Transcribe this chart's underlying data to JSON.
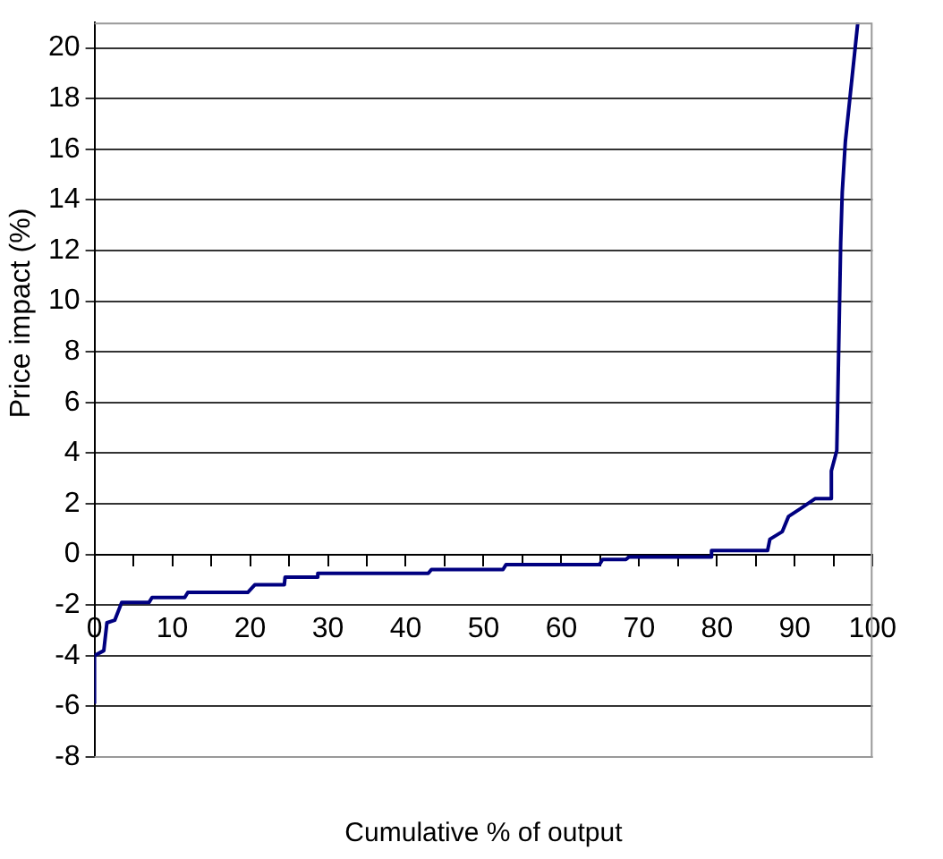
{
  "chart_data": {
    "type": "line",
    "xlabel": "Cumulative % of output",
    "ylabel": "Price impact (%)",
    "xlim": [
      0,
      100
    ],
    "xticks": [
      0,
      {
        "value": 5,
        "label": null
      },
      10,
      {
        "value": 15,
        "label": null
      },
      20,
      {
        "value": 25,
        "label": null
      },
      30,
      {
        "value": 35,
        "label": null
      },
      40,
      {
        "value": 45,
        "label": null
      },
      50,
      {
        "value": 55,
        "label": null
      },
      60,
      {
        "value": 65,
        "label": null
      },
      70,
      {
        "value": 75,
        "label": null
      },
      80,
      {
        "value": 85,
        "label": null
      },
      90,
      {
        "value": 95,
        "label": null
      },
      100
    ],
    "ylim": [
      -8,
      21
    ],
    "yticks": [
      -8,
      -6,
      -4,
      -2,
      0,
      2,
      4,
      6,
      8,
      10,
      12,
      14,
      16,
      18,
      20
    ],
    "grid": "y",
    "legend": false,
    "marker": "none",
    "line_style": "solid",
    "series": [
      {
        "color": "#000080",
        "x": [
          0,
          0,
          1.2,
          1.6,
          2.6,
          3.5,
          7.0,
          7.4,
          11.6,
          12,
          19.7,
          20.6,
          24.4,
          24.5,
          28.6,
          28.7,
          42.9,
          43.3,
          52.5,
          52.9,
          64.9,
          65.3,
          68.3,
          68.7,
          79.2,
          79.3,
          86.5,
          86.8,
          88.4,
          89.2,
          90.7,
          92.6,
          94.6,
          94.7,
          95.4,
          95.9,
          96.1,
          96.5,
          98.1
        ],
        "values": [
          -5.9,
          -4.0,
          -3.8,
          -2.7,
          -2.6,
          -1.9,
          -1.9,
          -1.7,
          -1.7,
          -1.5,
          -1.5,
          -1.2,
          -1.2,
          -0.9,
          -0.9,
          -0.75,
          -0.75,
          -0.6,
          -0.6,
          -0.4,
          -0.4,
          -0.2,
          -0.2,
          -0.1,
          -0.1,
          0.15,
          0.15,
          0.6,
          0.9,
          1.5,
          1.8,
          2.2,
          2.2,
          3.3,
          4.1,
          12.3,
          14.3,
          16.3,
          21
        ]
      }
    ]
  }
}
